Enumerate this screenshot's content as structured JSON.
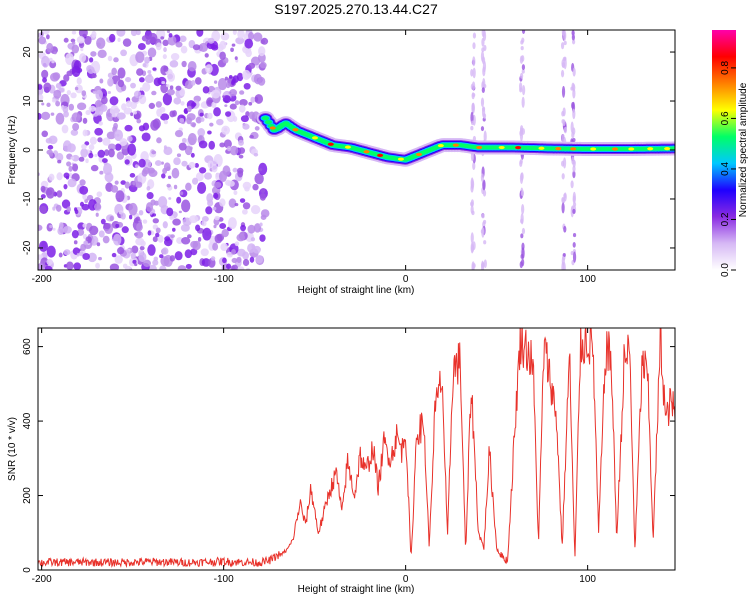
{
  "figure_title": "S197.2025.270.13.44.C27",
  "chart_data": [
    {
      "type": "heatmap",
      "title": "S197.2025.270.13.44.C27",
      "xlabel": "Height of straight line (km)",
      "ylabel": "Frequency (Hz)",
      "xlim": [
        -202,
        148
      ],
      "ylim": [
        -24.5,
        24.5
      ],
      "xticks": [
        -200,
        -100,
        0,
        100
      ],
      "yticks": [
        -20,
        -10,
        0,
        10,
        20
      ],
      "colorbar": {
        "label": "Normalized spectral amplitude",
        "range": [
          0,
          0.95
        ],
        "ticks": [
          0.0,
          0.2,
          0.4,
          0.6,
          0.8
        ],
        "colors": [
          "#ffffff",
          "#d6b8f5",
          "#8a2be2",
          "#1e00ff",
          "#00c8ff",
          "#00ff66",
          "#ffff00",
          "#ff7f00",
          "#ff0000",
          "#ff00aa"
        ]
      },
      "noise_region_x": [
        -202,
        -77
      ],
      "ridge": [
        [
          -77,
          6.5
        ],
        [
          -72,
          4
        ],
        [
          -66,
          5.5
        ],
        [
          -60,
          4
        ],
        [
          -50,
          2.5
        ],
        [
          -40,
          1
        ],
        [
          -30,
          0.5
        ],
        [
          -20,
          -0.5
        ],
        [
          -10,
          -1.5
        ],
        [
          0,
          -2
        ],
        [
          10,
          -0.5
        ],
        [
          20,
          1
        ],
        [
          30,
          1
        ],
        [
          40,
          0.5
        ],
        [
          60,
          0.5
        ],
        [
          80,
          0.3
        ],
        [
          100,
          0.2
        ],
        [
          120,
          0.2
        ],
        [
          148,
          0.3
        ]
      ],
      "vertical_streaks_x": [
        37,
        43,
        64,
        87,
        92
      ]
    },
    {
      "type": "line",
      "xlabel": "Height of straight line (km)",
      "ylabel": "SNR (10 * v/v)",
      "xlim": [
        -202,
        148
      ],
      "ylim": [
        0,
        650
      ],
      "xticks": [
        -200,
        -100,
        0,
        100
      ],
      "yticks": [
        0,
        200,
        400,
        600
      ],
      "series": [
        {
          "name": "SNR",
          "color": "#e8322b",
          "x": [
            -202,
            -180,
            -160,
            -140,
            -120,
            -100,
            -90,
            -80,
            -75,
            -70,
            -65,
            -62,
            -58,
            -55,
            -52,
            -48,
            -45,
            -42,
            -38,
            -35,
            -32,
            -28,
            -25,
            -22,
            -18,
            -15,
            -12,
            -8,
            -5,
            -2,
            0,
            3,
            6,
            10,
            13,
            16,
            20,
            23,
            26,
            30,
            33,
            36,
            40,
            43,
            46,
            50,
            53,
            56,
            60,
            63,
            66,
            70,
            73,
            76,
            80,
            83,
            86,
            90,
            93,
            96,
            100,
            103,
            106,
            110,
            113,
            116,
            120,
            123,
            126,
            130,
            133,
            136,
            140,
            143,
            146,
            148
          ],
          "y": [
            15,
            16,
            15,
            17,
            15,
            18,
            16,
            15,
            20,
            35,
            55,
            80,
            180,
            120,
            220,
            100,
            150,
            210,
            260,
            150,
            290,
            200,
            310,
            260,
            330,
            220,
            340,
            300,
            360,
            320,
            380,
            20,
            370,
            390,
            60,
            420,
            520,
            80,
            540,
            560,
            40,
            500,
            100,
            60,
            320,
            60,
            30,
            20,
            380,
            620,
            600,
            550,
            70,
            600,
            500,
            400,
            60,
            580,
            20,
            600,
            620,
            590,
            100,
            600,
            560,
            80,
            550,
            600,
            50,
            560,
            520,
            80,
            620,
            400,
            460,
            410
          ]
        }
      ]
    }
  ]
}
